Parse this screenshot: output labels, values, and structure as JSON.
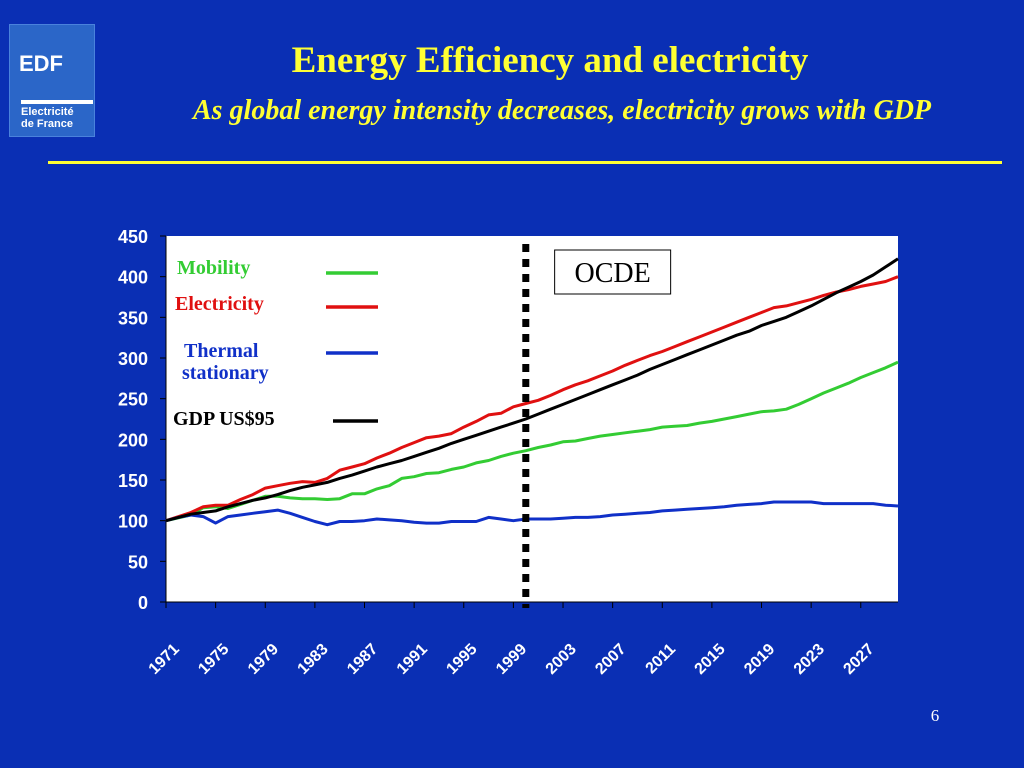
{
  "header": {
    "logo": {
      "brand": "EDF",
      "line1": "Electricité",
      "line2": "de France"
    },
    "title": "Energy Efficiency and electricity",
    "subtitle": "As global energy intensity decreases, electricity grows with GDP"
  },
  "footer": {
    "page_number": "6"
  },
  "colors": {
    "background": "#0a2fb4",
    "title": "#ffff33",
    "mobility": "#33cc33",
    "electricity": "#e01010",
    "thermal": "#1030c8",
    "gdp": "#000000"
  },
  "chart_data": {
    "type": "line",
    "title": "",
    "xlabel": "",
    "ylabel": "",
    "ylim": [
      0,
      450
    ],
    "yticks": [
      0,
      50,
      100,
      150,
      200,
      250,
      300,
      350,
      400,
      450
    ],
    "xlim": [
      1971,
      2030
    ],
    "xticks": [
      1971,
      1975,
      1979,
      1983,
      1987,
      1991,
      1995,
      1999,
      2003,
      2007,
      2011,
      2015,
      2019,
      2023,
      2027
    ],
    "grid": false,
    "legend_position": "top-left",
    "annotations": [
      {
        "text": "OCDE",
        "x": 2007
      },
      {
        "type": "vertical-dashed-line",
        "x": 2000
      }
    ],
    "series": [
      {
        "name": "Mobility",
        "color": "#33cc33",
        "points": [
          [
            1971,
            100
          ],
          [
            1973,
            107
          ],
          [
            1974,
            116
          ],
          [
            1975,
            117
          ],
          [
            1976,
            115
          ],
          [
            1977,
            120
          ],
          [
            1978,
            125
          ],
          [
            1979,
            130
          ],
          [
            1980,
            130
          ],
          [
            1981,
            128
          ],
          [
            1982,
            127
          ],
          [
            1983,
            127
          ],
          [
            1984,
            126
          ],
          [
            1985,
            127
          ],
          [
            1986,
            133
          ],
          [
            1987,
            133
          ],
          [
            1988,
            139
          ],
          [
            1989,
            143
          ],
          [
            1990,
            152
          ],
          [
            1991,
            154
          ],
          [
            1992,
            158
          ],
          [
            1993,
            159
          ],
          [
            1994,
            163
          ],
          [
            1995,
            166
          ],
          [
            1996,
            171
          ],
          [
            1997,
            174
          ],
          [
            1998,
            179
          ],
          [
            1999,
            183
          ],
          [
            2000,
            186
          ],
          [
            2001,
            190
          ],
          [
            2002,
            193
          ],
          [
            2003,
            197
          ],
          [
            2004,
            198
          ],
          [
            2005,
            201
          ],
          [
            2006,
            204
          ],
          [
            2007,
            206
          ],
          [
            2008,
            208
          ],
          [
            2009,
            210
          ],
          [
            2010,
            212
          ],
          [
            2011,
            215
          ],
          [
            2012,
            216
          ],
          [
            2013,
            217
          ],
          [
            2014,
            220
          ],
          [
            2015,
            222
          ],
          [
            2016,
            225
          ],
          [
            2017,
            228
          ],
          [
            2018,
            231
          ],
          [
            2019,
            234
          ],
          [
            2020,
            235
          ],
          [
            2021,
            237
          ],
          [
            2022,
            243
          ],
          [
            2023,
            250
          ],
          [
            2024,
            257
          ],
          [
            2025,
            263
          ],
          [
            2026,
            269
          ],
          [
            2027,
            276
          ],
          [
            2028,
            282
          ],
          [
            2029,
            288
          ],
          [
            2030,
            295
          ]
        ]
      },
      {
        "name": "Electricity",
        "color": "#e01010",
        "points": [
          [
            1971,
            100
          ],
          [
            1973,
            110
          ],
          [
            1974,
            117
          ],
          [
            1975,
            119
          ],
          [
            1976,
            119
          ],
          [
            1977,
            126
          ],
          [
            1978,
            132
          ],
          [
            1979,
            140
          ],
          [
            1980,
            143
          ],
          [
            1981,
            146
          ],
          [
            1982,
            148
          ],
          [
            1983,
            147
          ],
          [
            1984,
            152
          ],
          [
            1985,
            162
          ],
          [
            1986,
            166
          ],
          [
            1987,
            170
          ],
          [
            1988,
            177
          ],
          [
            1989,
            183
          ],
          [
            1990,
            190
          ],
          [
            1991,
            196
          ],
          [
            1992,
            202
          ],
          [
            1993,
            204
          ],
          [
            1994,
            207
          ],
          [
            1995,
            215
          ],
          [
            1996,
            222
          ],
          [
            1997,
            230
          ],
          [
            1998,
            232
          ],
          [
            1999,
            240
          ],
          [
            2000,
            244
          ],
          [
            2001,
            248
          ],
          [
            2002,
            254
          ],
          [
            2003,
            261
          ],
          [
            2004,
            267
          ],
          [
            2005,
            272
          ],
          [
            2006,
            278
          ],
          [
            2007,
            284
          ],
          [
            2008,
            291
          ],
          [
            2009,
            297
          ],
          [
            2010,
            303
          ],
          [
            2011,
            308
          ],
          [
            2012,
            314
          ],
          [
            2013,
            320
          ],
          [
            2014,
            326
          ],
          [
            2015,
            332
          ],
          [
            2016,
            338
          ],
          [
            2017,
            344
          ],
          [
            2018,
            350
          ],
          [
            2019,
            356
          ],
          [
            2020,
            362
          ],
          [
            2021,
            364
          ],
          [
            2022,
            368
          ],
          [
            2023,
            372
          ],
          [
            2024,
            377
          ],
          [
            2025,
            381
          ],
          [
            2026,
            384
          ],
          [
            2027,
            388
          ],
          [
            2028,
            391
          ],
          [
            2029,
            394
          ],
          [
            2030,
            400
          ]
        ]
      },
      {
        "name": "Thermal stationary",
        "color": "#1030c8",
        "points": [
          [
            1971,
            100
          ],
          [
            1972,
            104
          ],
          [
            1973,
            107
          ],
          [
            1974,
            105
          ],
          [
            1975,
            97
          ],
          [
            1976,
            105
          ],
          [
            1977,
            107
          ],
          [
            1978,
            109
          ],
          [
            1979,
            111
          ],
          [
            1980,
            113
          ],
          [
            1981,
            109
          ],
          [
            1982,
            104
          ],
          [
            1983,
            99
          ],
          [
            1984,
            95
          ],
          [
            1985,
            99
          ],
          [
            1986,
            99
          ],
          [
            1987,
            100
          ],
          [
            1988,
            102
          ],
          [
            1989,
            101
          ],
          [
            1990,
            100
          ],
          [
            1991,
            98
          ],
          [
            1992,
            97
          ],
          [
            1993,
            97
          ],
          [
            1994,
            99
          ],
          [
            1995,
            99
          ],
          [
            1996,
            99
          ],
          [
            1997,
            104
          ],
          [
            1998,
            102
          ],
          [
            1999,
            100
          ],
          [
            2000,
            102
          ],
          [
            2001,
            102
          ],
          [
            2002,
            102
          ],
          [
            2003,
            103
          ],
          [
            2004,
            104
          ],
          [
            2005,
            104
          ],
          [
            2006,
            105
          ],
          [
            2007,
            107
          ],
          [
            2008,
            108
          ],
          [
            2009,
            109
          ],
          [
            2010,
            110
          ],
          [
            2011,
            112
          ],
          [
            2012,
            113
          ],
          [
            2013,
            114
          ],
          [
            2014,
            115
          ],
          [
            2015,
            116
          ],
          [
            2016,
            117
          ],
          [
            2017,
            119
          ],
          [
            2018,
            120
          ],
          [
            2019,
            121
          ],
          [
            2020,
            123
          ],
          [
            2021,
            123
          ],
          [
            2022,
            123
          ],
          [
            2023,
            123
          ],
          [
            2024,
            121
          ],
          [
            2025,
            121
          ],
          [
            2026,
            121
          ],
          [
            2027,
            121
          ],
          [
            2028,
            121
          ],
          [
            2029,
            119
          ],
          [
            2030,
            118
          ]
        ]
      },
      {
        "name": "GDP US$95",
        "color": "#000000",
        "points": [
          [
            1971,
            100
          ],
          [
            1973,
            108
          ],
          [
            1974,
            110
          ],
          [
            1975,
            112
          ],
          [
            1976,
            117
          ],
          [
            1977,
            121
          ],
          [
            1978,
            125
          ],
          [
            1979,
            128
          ],
          [
            1980,
            132
          ],
          [
            1981,
            137
          ],
          [
            1982,
            141
          ],
          [
            1983,
            144
          ],
          [
            1984,
            147
          ],
          [
            1985,
            152
          ],
          [
            1986,
            156
          ],
          [
            1987,
            161
          ],
          [
            1988,
            166
          ],
          [
            1989,
            170
          ],
          [
            1990,
            174
          ],
          [
            1991,
            179
          ],
          [
            1992,
            184
          ],
          [
            1993,
            189
          ],
          [
            1994,
            195
          ],
          [
            1995,
            200
          ],
          [
            1996,
            205
          ],
          [
            1997,
            210
          ],
          [
            1998,
            215
          ],
          [
            1999,
            220
          ],
          [
            2000,
            225
          ],
          [
            2001,
            231
          ],
          [
            2002,
            237
          ],
          [
            2003,
            243
          ],
          [
            2004,
            249
          ],
          [
            2005,
            255
          ],
          [
            2006,
            261
          ],
          [
            2007,
            267
          ],
          [
            2008,
            273
          ],
          [
            2009,
            279
          ],
          [
            2010,
            286
          ],
          [
            2011,
            292
          ],
          [
            2012,
            298
          ],
          [
            2013,
            304
          ],
          [
            2014,
            310
          ],
          [
            2015,
            316
          ],
          [
            2016,
            322
          ],
          [
            2017,
            328
          ],
          [
            2018,
            333
          ],
          [
            2019,
            340
          ],
          [
            2020,
            345
          ],
          [
            2021,
            350
          ],
          [
            2022,
            357
          ],
          [
            2023,
            364
          ],
          [
            2024,
            372
          ],
          [
            2025,
            380
          ],
          [
            2026,
            387
          ],
          [
            2027,
            394
          ],
          [
            2028,
            402
          ],
          [
            2029,
            412
          ],
          [
            2030,
            422
          ]
        ]
      }
    ]
  }
}
